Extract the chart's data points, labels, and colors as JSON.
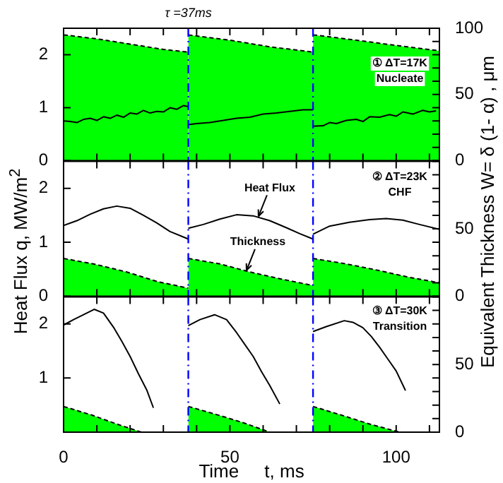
{
  "chart_data": [
    {
      "type": "line",
      "title": "τ =37ms",
      "xlim": [
        0,
        113
      ],
      "xticks": [
        0,
        {
          "value": 10,
          "label": null
        },
        {
          "value": 20,
          "label": null
        },
        {
          "value": 30,
          "label": null
        },
        {
          "value": 40,
          "label": null
        },
        {
          "value": 50,
          "label": null
        },
        {
          "value": 60,
          "label": null
        },
        {
          "value": 70,
          "label": null
        },
        {
          "value": 80,
          "label": null
        },
        {
          "value": 90,
          "label": null
        },
        {
          "value": 100,
          "label": null
        },
        {
          "value": 110,
          "label": null
        }
      ],
      "ylim": [
        0,
        2.5
      ],
      "yticks": [
        0,
        1,
        2
      ],
      "y2lim": [
        0,
        100
      ],
      "y2ticks": [
        0,
        {
          "value": 10,
          "label": null
        },
        {
          "value": 20,
          "label": null
        },
        {
          "value": 30,
          "label": null
        },
        {
          "value": 40,
          "label": null
        },
        50,
        {
          "value": 60,
          "label": null
        },
        {
          "value": 70,
          "label": null
        },
        {
          "value": 80,
          "label": null
        },
        {
          "value": 90,
          "label": null
        },
        100
      ],
      "tick_labels": "y",
      "grid": false,
      "legend": false,
      "series": [
        {
          "type": "area",
          "axis": "y2",
          "color": "#00ff00",
          "line_style": "dashed",
          "x": [
            0,
            10,
            20,
            30,
            37.5
          ],
          "values": [
            95,
            92,
            88,
            84,
            82
          ]
        },
        {
          "type": "area",
          "axis": "y2",
          "color": "#00ff00",
          "line_style": "dashed",
          "x": [
            37.5,
            50,
            62,
            75
          ],
          "values": [
            95,
            91,
            86,
            82
          ]
        },
        {
          "type": "area",
          "axis": "y2",
          "color": "#00ff00",
          "line_style": "dashed",
          "x": [
            75,
            88,
            100,
            113
          ],
          "values": [
            95,
            91,
            87,
            83
          ]
        },
        {
          "type": "line",
          "color": "#000000",
          "x": [
            0,
            2,
            4,
            6,
            8,
            10,
            12,
            14,
            16,
            18,
            20,
            22,
            24,
            26,
            28,
            30,
            32,
            34,
            36,
            37.5
          ],
          "values": [
            0.75,
            0.74,
            0.72,
            0.78,
            0.8,
            0.76,
            0.83,
            0.8,
            0.86,
            0.82,
            0.9,
            0.88,
            0.95,
            0.9,
            0.93,
            0.92,
            1.0,
            0.97,
            1.04,
            1.02
          ]
        },
        {
          "type": "line",
          "color": "#000000",
          "x": [
            37.5,
            40,
            44,
            48,
            52,
            56,
            60,
            64,
            68,
            72,
            75
          ],
          "values": [
            0.68,
            0.7,
            0.72,
            0.76,
            0.8,
            0.82,
            0.88,
            0.9,
            0.93,
            0.96,
            0.96
          ]
        },
        {
          "type": "line",
          "color": "#000000",
          "x": [
            75,
            78,
            80,
            82,
            85,
            88,
            90,
            92,
            95,
            98,
            100,
            102,
            105,
            108,
            110,
            112
          ],
          "values": [
            0.65,
            0.66,
            0.72,
            0.7,
            0.76,
            0.78,
            0.74,
            0.83,
            0.82,
            0.87,
            0.84,
            0.92,
            0.88,
            0.95,
            0.92,
            0.94
          ]
        }
      ],
      "ref_lines": [
        {
          "axis": "x",
          "value": 37.5,
          "color": "#0000ff",
          "line_style": "dashed"
        },
        {
          "axis": "x",
          "value": 75,
          "color": "#0000ff",
          "line_style": "dashed"
        }
      ],
      "annotations": [
        "① ΔT=17K",
        "Nucleate"
      ]
    },
    {
      "type": "line",
      "ylabel": "Heat Flux   q, MW/m$^{2}$",
      "y2label": "Equivalent Thickness   W= δ (1- α) , μm",
      "xlim": [
        0,
        113
      ],
      "xticks": [
        0,
        {
          "value": 10,
          "label": null
        },
        {
          "value": 20,
          "label": null
        },
        {
          "value": 30,
          "label": null
        },
        {
          "value": 40,
          "label": null
        },
        {
          "value": 50,
          "label": null
        },
        {
          "value": 60,
          "label": null
        },
        {
          "value": 70,
          "label": null
        },
        {
          "value": 80,
          "label": null
        },
        {
          "value": 90,
          "label": null
        },
        {
          "value": 100,
          "label": null
        },
        {
          "value": 110,
          "label": null
        }
      ],
      "ylim": [
        0,
        2.5
      ],
      "yticks": [
        0,
        1,
        2
      ],
      "y2lim": [
        0,
        100
      ],
      "y2ticks": [
        0,
        {
          "value": 10,
          "label": null
        },
        {
          "value": 20,
          "label": null
        },
        {
          "value": 30,
          "label": null
        },
        {
          "value": 40,
          "label": null
        },
        50,
        {
          "value": 60,
          "label": null
        },
        {
          "value": 70,
          "label": null
        },
        {
          "value": 80,
          "label": null
        },
        {
          "value": 90,
          "label": null
        },
        {
          "value": 100,
          "label": null
        }
      ],
      "tick_labels": "y",
      "grid": false,
      "legend": false,
      "series": [
        {
          "type": "area",
          "axis": "y2",
          "color": "#00ff00",
          "line_style": "dashed",
          "x": [
            0,
            9,
            19,
            28,
            37.5
          ],
          "values": [
            28,
            24,
            18,
            11,
            6
          ]
        },
        {
          "type": "area",
          "axis": "y2",
          "color": "#00ff00",
          "line_style": "dashed",
          "x": [
            37.5,
            47,
            56,
            65,
            75
          ],
          "values": [
            28,
            24,
            18,
            13,
            8
          ]
        },
        {
          "type": "area",
          "axis": "y2",
          "color": "#00ff00",
          "line_style": "dashed",
          "x": [
            75,
            85,
            95,
            104,
            113
          ],
          "values": [
            28,
            24,
            19,
            14,
            10
          ]
        },
        {
          "type": "line",
          "color": "#000000",
          "x": [
            0,
            4,
            8,
            12,
            16,
            20,
            24,
            28,
            32,
            37.5
          ],
          "values": [
            1.31,
            1.4,
            1.52,
            1.62,
            1.67,
            1.63,
            1.5,
            1.36,
            1.2,
            1.06
          ]
        },
        {
          "type": "line",
          "color": "#000000",
          "x": [
            37.5,
            42,
            47,
            52,
            57,
            62,
            67,
            71,
            75
          ],
          "values": [
            1.26,
            1.33,
            1.43,
            1.51,
            1.49,
            1.4,
            1.27,
            1.16,
            1.06
          ]
        },
        {
          "type": "line",
          "color": "#000000",
          "x": [
            75,
            80,
            86,
            92,
            97,
            102,
            107,
            113
          ],
          "values": [
            1.15,
            1.3,
            1.37,
            1.42,
            1.44,
            1.41,
            1.33,
            1.24
          ]
        }
      ],
      "ref_lines": [
        {
          "axis": "x",
          "value": 37.5,
          "color": "#0000ff",
          "line_style": "dashed"
        },
        {
          "axis": "x",
          "value": 75,
          "color": "#0000ff",
          "line_style": "dashed"
        }
      ],
      "annotations": [
        "② ΔT=23K",
        "CHF",
        {
          "text": "Heat Flux",
          "x": 58.6,
          "y": 1.48
        },
        {
          "text": "Thickness",
          "x": 55,
          "y": 0.48
        }
      ]
    },
    {
      "type": "line",
      "xlabel": "Time     t, ms",
      "xlim": [
        0,
        113
      ],
      "xticks": [
        0,
        {
          "value": 10,
          "label": null
        },
        {
          "value": 20,
          "label": null
        },
        {
          "value": 30,
          "label": null
        },
        {
          "value": 40,
          "label": null
        },
        50,
        {
          "value": 60,
          "label": null
        },
        {
          "value": 70,
          "label": null
        },
        {
          "value": 80,
          "label": null
        },
        {
          "value": 90,
          "label": null
        },
        100,
        {
          "value": 110,
          "label": null
        }
      ],
      "ylim": [
        0,
        2.5
      ],
      "yticks": [
        1,
        2
      ],
      "y2lim": [
        0,
        100
      ],
      "y2ticks": [
        0,
        {
          "value": 10,
          "label": null
        },
        {
          "value": 20,
          "label": null
        },
        {
          "value": 30,
          "label": null
        },
        {
          "value": 40,
          "label": null
        },
        50,
        {
          "value": 60,
          "label": null
        },
        {
          "value": 70,
          "label": null
        },
        {
          "value": 80,
          "label": null
        },
        {
          "value": 90,
          "label": null
        },
        {
          "value": 100,
          "label": null
        }
      ],
      "grid": false,
      "legend": false,
      "series": [
        {
          "type": "area",
          "axis": "y2",
          "color": "#00ff00",
          "line_style": "dashed",
          "x": [
            0,
            8,
            16,
            23.4
          ],
          "values": [
            19,
            13,
            6,
            0
          ]
        },
        {
          "type": "area",
          "axis": "y2",
          "color": "#00ff00",
          "line_style": "dashed",
          "x": [
            37.5,
            46,
            54,
            62
          ],
          "values": [
            19,
            13,
            7,
            0
          ]
        },
        {
          "type": "area",
          "axis": "y2",
          "color": "#00ff00",
          "line_style": "dashed",
          "x": [
            75,
            83,
            92,
            101
          ],
          "values": [
            19,
            13,
            6,
            0
          ]
        },
        {
          "type": "line",
          "color": "#000000",
          "x": [
            0,
            3,
            6,
            9.2,
            12,
            15,
            17.5,
            20,
            22.5,
            25,
            27
          ],
          "values": [
            1.98,
            2.08,
            2.17,
            2.27,
            2.2,
            1.94,
            1.68,
            1.4,
            1.08,
            0.78,
            0.45
          ]
        },
        {
          "type": "line",
          "color": "#000000",
          "x": [
            37.5,
            41,
            45.4,
            49,
            52,
            54.5,
            57,
            59.5,
            62,
            65
          ],
          "values": [
            1.97,
            2.08,
            2.17,
            2.08,
            1.84,
            1.62,
            1.4,
            1.12,
            0.86,
            0.52
          ]
        },
        {
          "type": "line",
          "color": "#000000",
          "x": [
            75,
            79,
            84.4,
            87,
            90,
            92.5,
            95,
            97.5,
            100,
            102.8
          ],
          "values": [
            1.86,
            1.95,
            2.06,
            2.03,
            1.93,
            1.77,
            1.57,
            1.35,
            1.13,
            0.77
          ]
        }
      ],
      "ref_lines": [
        {
          "axis": "x",
          "value": 37.5,
          "color": "#0000ff",
          "line_style": "dashed"
        },
        {
          "axis": "x",
          "value": 75,
          "color": "#0000ff",
          "line_style": "dashed"
        }
      ],
      "annotations": [
        "③ ΔT=30K",
        "Transition"
      ]
    }
  ]
}
